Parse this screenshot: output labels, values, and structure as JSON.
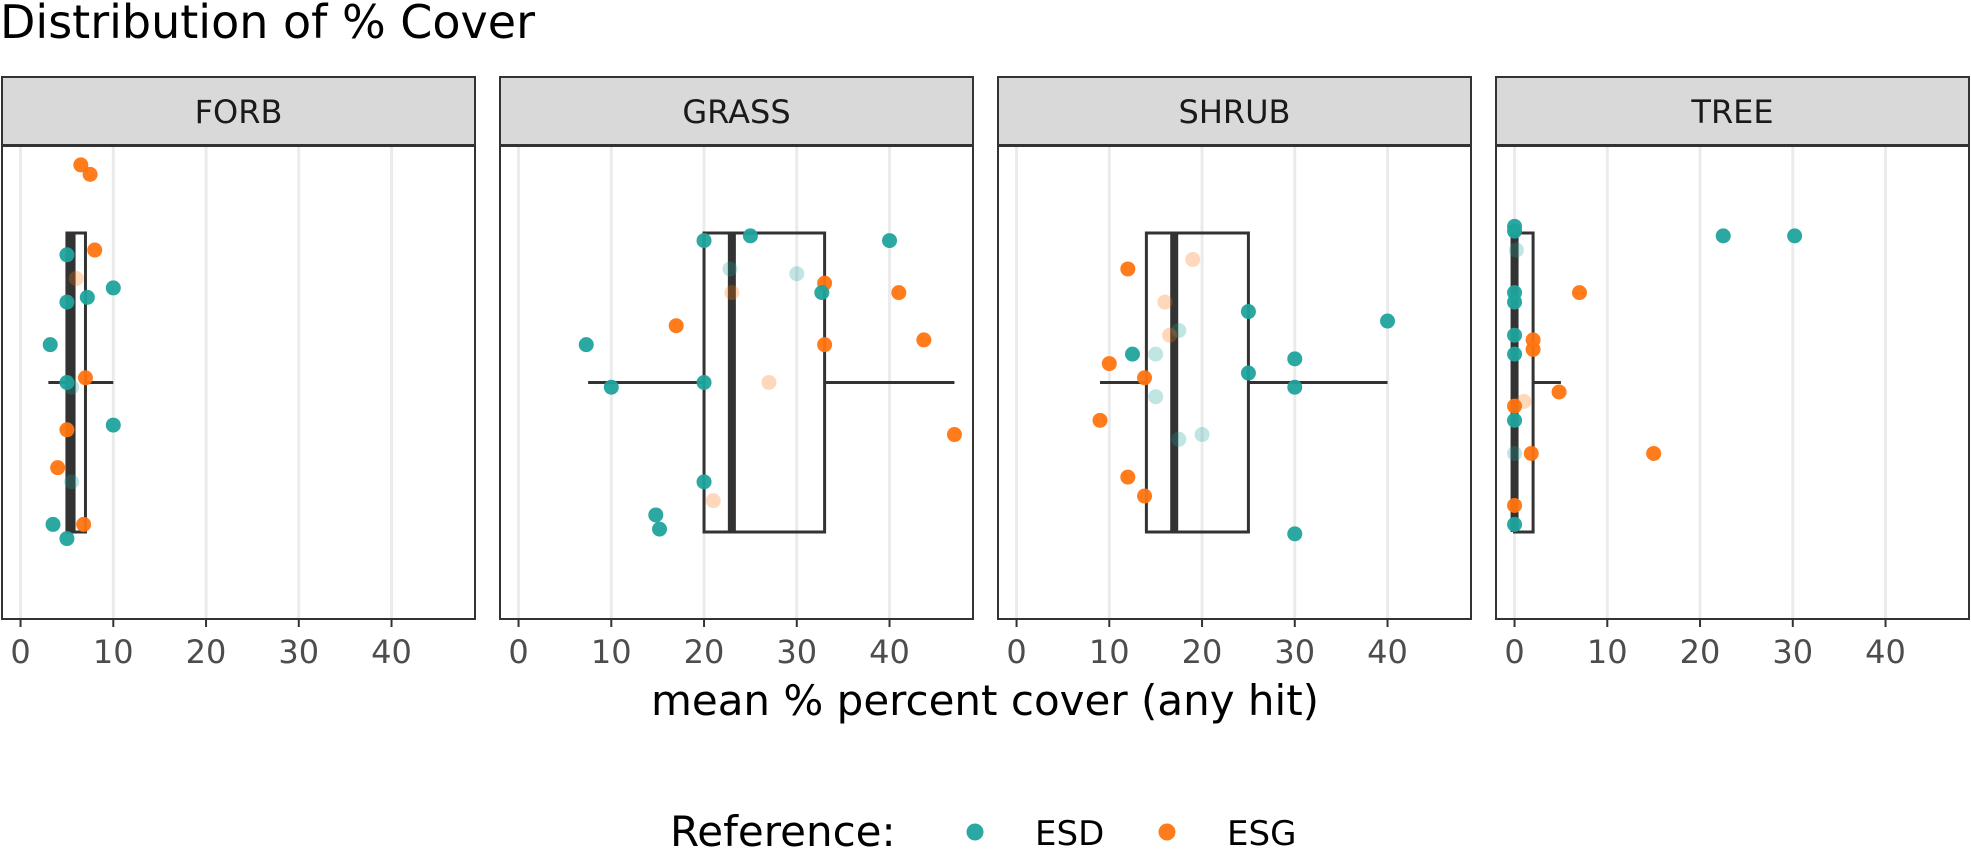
{
  "chart_data": {
    "type": "scatter",
    "title": "Distribution of % Cover",
    "xlabel": "mean % percent cover (any hit)",
    "ylabel": "",
    "xlim": [
      -2,
      49
    ],
    "x_ticks": [
      "0",
      "10",
      "20",
      "30",
      "40"
    ],
    "grid": true,
    "legend": {
      "title": "Reference:",
      "placement": "bottom",
      "entries": [
        {
          "name": "ESD",
          "color": "#1FA39C"
        },
        {
          "name": "ESG",
          "color": "#FF7410"
        }
      ]
    },
    "facets": [
      {
        "name": "FORB",
        "box": {
          "whisker_low": 3,
          "q1": 5,
          "median": 5.5,
          "q3": 7,
          "whisker_high": 10
        },
        "points": [
          {
            "x": 5,
            "j": 0.23,
            "g": "ESD",
            "faded": false
          },
          {
            "x": 7.5,
            "j": 0.06,
            "g": "ESG",
            "faded": false
          },
          {
            "x": 6.5,
            "j": 0.04,
            "g": "ESG",
            "faded": false
          },
          {
            "x": 8,
            "j": 0.22,
            "g": "ESG",
            "faded": false
          },
          {
            "x": 6,
            "j": 0.28,
            "g": "ESG",
            "faded": true
          },
          {
            "x": 10,
            "j": 0.3,
            "g": "ESD",
            "faded": false
          },
          {
            "x": 7.2,
            "j": 0.32,
            "g": "ESD",
            "faded": false
          },
          {
            "x": 5,
            "j": 0.33,
            "g": "ESD",
            "faded": false
          },
          {
            "x": 3.2,
            "j": 0.42,
            "g": "ESD",
            "faded": false
          },
          {
            "x": 7,
            "j": 0.49,
            "g": "ESG",
            "faded": false
          },
          {
            "x": 5,
            "j": 0.5,
            "g": "ESD",
            "faded": false
          },
          {
            "x": 5.5,
            "j": 0.51,
            "g": "ESD",
            "faded": true
          },
          {
            "x": 10,
            "j": 0.59,
            "g": "ESD",
            "faded": false
          },
          {
            "x": 5,
            "j": 0.6,
            "g": "ESG",
            "faded": false
          },
          {
            "x": 4,
            "j": 0.68,
            "g": "ESG",
            "faded": false
          },
          {
            "x": 5.5,
            "j": 0.71,
            "g": "ESD",
            "faded": true
          },
          {
            "x": 3.5,
            "j": 0.8,
            "g": "ESD",
            "faded": false
          },
          {
            "x": 6.8,
            "j": 0.8,
            "g": "ESG",
            "faded": false
          },
          {
            "x": 5,
            "j": 0.83,
            "g": "ESD",
            "faded": false
          }
        ]
      },
      {
        "name": "GRASS",
        "box": {
          "whisker_low": 7.5,
          "q1": 20,
          "median": 23,
          "q3": 33,
          "whisker_high": 47
        },
        "points": [
          {
            "x": 20,
            "j": 0.2,
            "g": "ESD",
            "faded": false
          },
          {
            "x": 25,
            "j": 0.19,
            "g": "ESD",
            "faded": false
          },
          {
            "x": 40,
            "j": 0.2,
            "g": "ESD",
            "faded": false
          },
          {
            "x": 22.8,
            "j": 0.26,
            "g": "ESD",
            "faded": true
          },
          {
            "x": 30,
            "j": 0.27,
            "g": "ESD",
            "faded": true
          },
          {
            "x": 33,
            "j": 0.29,
            "g": "ESG",
            "faded": false
          },
          {
            "x": 23,
            "j": 0.31,
            "g": "ESG",
            "faded": true
          },
          {
            "x": 32.7,
            "j": 0.31,
            "g": "ESD",
            "faded": false
          },
          {
            "x": 41,
            "j": 0.31,
            "g": "ESG",
            "faded": false
          },
          {
            "x": 17,
            "j": 0.38,
            "g": "ESG",
            "faded": false
          },
          {
            "x": 7.3,
            "j": 0.42,
            "g": "ESD",
            "faded": false
          },
          {
            "x": 43.7,
            "j": 0.41,
            "g": "ESG",
            "faded": false
          },
          {
            "x": 33,
            "j": 0.42,
            "g": "ESG",
            "faded": false
          },
          {
            "x": 20,
            "j": 0.5,
            "g": "ESD",
            "faded": false
          },
          {
            "x": 27,
            "j": 0.5,
            "g": "ESG",
            "faded": true
          },
          {
            "x": 10,
            "j": 0.51,
            "g": "ESD",
            "faded": false
          },
          {
            "x": 47,
            "j": 0.61,
            "g": "ESG",
            "faded": false
          },
          {
            "x": 20,
            "j": 0.71,
            "g": "ESD",
            "faded": false
          },
          {
            "x": 21,
            "j": 0.75,
            "g": "ESG",
            "faded": true
          },
          {
            "x": 14.8,
            "j": 0.78,
            "g": "ESD",
            "faded": false
          },
          {
            "x": 15.2,
            "j": 0.81,
            "g": "ESD",
            "faded": false
          }
        ]
      },
      {
        "name": "SHRUB",
        "box": {
          "whisker_low": 9,
          "q1": 14,
          "median": 17,
          "q3": 25,
          "whisker_high": 40
        },
        "points": [
          {
            "x": 19,
            "j": 0.24,
            "g": "ESG",
            "faded": true
          },
          {
            "x": 12,
            "j": 0.26,
            "g": "ESG",
            "faded": false
          },
          {
            "x": 16,
            "j": 0.33,
            "g": "ESG",
            "faded": true
          },
          {
            "x": 25,
            "j": 0.35,
            "g": "ESD",
            "faded": false
          },
          {
            "x": 40,
            "j": 0.37,
            "g": "ESD",
            "faded": false
          },
          {
            "x": 17.5,
            "j": 0.39,
            "g": "ESD",
            "faded": true
          },
          {
            "x": 16.5,
            "j": 0.4,
            "g": "ESG",
            "faded": true
          },
          {
            "x": 12.5,
            "j": 0.44,
            "g": "ESD",
            "faded": false
          },
          {
            "x": 15,
            "j": 0.44,
            "g": "ESD",
            "faded": true
          },
          {
            "x": 30,
            "j": 0.45,
            "g": "ESD",
            "faded": false
          },
          {
            "x": 10,
            "j": 0.46,
            "g": "ESG",
            "faded": false
          },
          {
            "x": 25,
            "j": 0.48,
            "g": "ESD",
            "faded": false
          },
          {
            "x": 13.8,
            "j": 0.49,
            "g": "ESG",
            "faded": false
          },
          {
            "x": 30,
            "j": 0.51,
            "g": "ESD",
            "faded": false
          },
          {
            "x": 15,
            "j": 0.53,
            "g": "ESD",
            "faded": true
          },
          {
            "x": 9,
            "j": 0.58,
            "g": "ESG",
            "faded": false
          },
          {
            "x": 20,
            "j": 0.61,
            "g": "ESD",
            "faded": true
          },
          {
            "x": 17.5,
            "j": 0.62,
            "g": "ESD",
            "faded": true
          },
          {
            "x": 12,
            "j": 0.7,
            "g": "ESG",
            "faded": false
          },
          {
            "x": 13.8,
            "j": 0.74,
            "g": "ESG",
            "faded": false
          },
          {
            "x": 30,
            "j": 0.82,
            "g": "ESD",
            "faded": false
          }
        ]
      },
      {
        "name": "TREE",
        "box": {
          "whisker_low": 0,
          "q1": 0,
          "median": 0,
          "q3": 2,
          "whisker_high": 5
        },
        "points": [
          {
            "x": 0,
            "j": 0.17,
            "g": "ESD",
            "faded": false
          },
          {
            "x": 0,
            "j": 0.18,
            "g": "ESD",
            "faded": false
          },
          {
            "x": 22.5,
            "j": 0.19,
            "g": "ESD",
            "faded": false
          },
          {
            "x": 30.2,
            "j": 0.19,
            "g": "ESD",
            "faded": false
          },
          {
            "x": 0.2,
            "j": 0.22,
            "g": "ESD",
            "faded": true
          },
          {
            "x": 7,
            "j": 0.31,
            "g": "ESG",
            "faded": false
          },
          {
            "x": 0,
            "j": 0.31,
            "g": "ESD",
            "faded": false
          },
          {
            "x": 0,
            "j": 0.33,
            "g": "ESD",
            "faded": false
          },
          {
            "x": 0,
            "j": 0.4,
            "g": "ESD",
            "faded": false
          },
          {
            "x": 2,
            "j": 0.41,
            "g": "ESG",
            "faded": false
          },
          {
            "x": 2,
            "j": 0.43,
            "g": "ESG",
            "faded": false
          },
          {
            "x": 0,
            "j": 0.44,
            "g": "ESD",
            "faded": false
          },
          {
            "x": 4.8,
            "j": 0.52,
            "g": "ESG",
            "faded": false
          },
          {
            "x": 1,
            "j": 0.54,
            "g": "ESG",
            "faded": true
          },
          {
            "x": 0,
            "j": 0.55,
            "g": "ESG",
            "faded": false
          },
          {
            "x": 0,
            "j": 0.58,
            "g": "ESD",
            "faded": false
          },
          {
            "x": 0,
            "j": 0.65,
            "g": "ESD",
            "faded": true
          },
          {
            "x": 1.8,
            "j": 0.65,
            "g": "ESG",
            "faded": false
          },
          {
            "x": 15,
            "j": 0.65,
            "g": "ESG",
            "faded": false
          },
          {
            "x": 0,
            "j": 0.76,
            "g": "ESG",
            "faded": false
          },
          {
            "x": 0,
            "j": 0.8,
            "g": "ESD",
            "faded": false
          }
        ]
      }
    ]
  }
}
